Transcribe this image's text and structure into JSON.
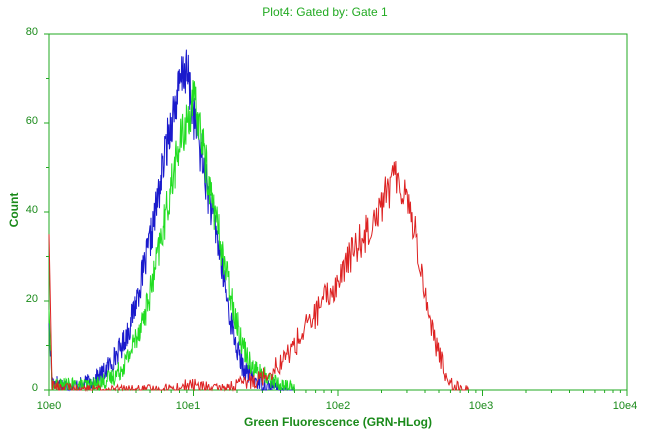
{
  "chart_data": {
    "type": "line",
    "title": "Plot4:  Gated by: Gate 1",
    "xlabel": "Green Fluorescence (GRN-HLog)",
    "ylabel": "Count",
    "x_scale": "log",
    "xlim": [
      1,
      10000
    ],
    "ylim": [
      0,
      80
    ],
    "x_ticks": [
      "10e0",
      "10e1",
      "10e2",
      "10e3",
      "10e4"
    ],
    "y_ticks": [
      "0",
      "20",
      "40",
      "60",
      "80"
    ],
    "grid": false,
    "colors": {
      "axis": "#22aa22",
      "text": "#1a8a1a"
    },
    "series": [
      {
        "color": "#1a1acc",
        "x": [
          1,
          1.05,
          1.3,
          1.6,
          2.0,
          2.4,
          2.8,
          3.2,
          3.6,
          4.0,
          4.6,
          5.2,
          5.8,
          6.5,
          7.2,
          8.0,
          8.6,
          9.2,
          10,
          11,
          12,
          13,
          14.5,
          16,
          18,
          20,
          22,
          25,
          28,
          32,
          36,
          40,
          50
        ],
        "y": [
          15,
          2,
          1,
          1,
          2,
          4,
          7,
          10,
          14,
          20,
          28,
          36,
          45,
          55,
          62,
          68,
          72,
          70,
          62,
          55,
          48,
          42,
          35,
          26,
          16,
          9,
          5,
          3,
          2,
          1,
          1,
          0,
          0
        ]
      },
      {
        "color": "#22dd22",
        "x": [
          1,
          1.05,
          1.3,
          1.6,
          2.0,
          2.4,
          2.8,
          3.2,
          3.6,
          4.0,
          4.6,
          5.2,
          5.8,
          6.5,
          7.2,
          8.0,
          9.0,
          10,
          11,
          12,
          13,
          14.5,
          16,
          18,
          20,
          22,
          25,
          28,
          32,
          36,
          40,
          45,
          50
        ],
        "y": [
          18,
          1,
          1,
          1,
          1,
          2,
          3,
          5,
          8,
          12,
          17,
          24,
          32,
          40,
          48,
          55,
          60,
          65,
          60,
          52,
          45,
          38,
          30,
          22,
          15,
          10,
          6,
          4,
          3,
          2,
          1,
          1,
          0
        ]
      },
      {
        "color": "#dd2222",
        "x": [
          1,
          1.05,
          1.5,
          3,
          6,
          10,
          15,
          20,
          30,
          40,
          50,
          60,
          70,
          80,
          100,
          120,
          140,
          160,
          180,
          200,
          230,
          260,
          300,
          340,
          380,
          420,
          480,
          550,
          600,
          650,
          700,
          800
        ],
        "y": [
          35,
          1,
          0,
          0,
          0,
          1,
          0,
          1,
          3,
          6,
          10,
          14,
          17,
          20,
          24,
          30,
          33,
          36,
          40,
          42,
          46,
          48,
          44,
          36,
          26,
          18,
          10,
          4,
          2,
          1,
          0,
          0
        ]
      }
    ]
  }
}
